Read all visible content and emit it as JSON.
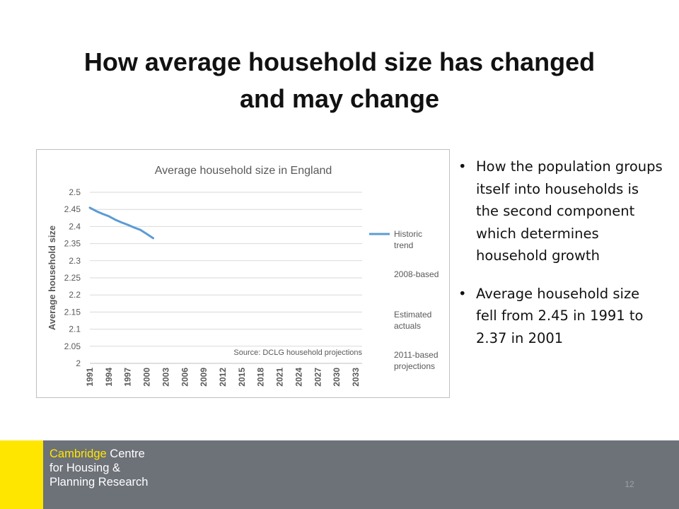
{
  "slide": {
    "title_line1": "How average household size has changed",
    "title_line2": "and may change",
    "page_number": "12"
  },
  "bullets": [
    {
      "text": "How the population groups itself into households is the second component which determines household growth"
    },
    {
      "text": "Average household size fell from 2.45 in 1991 to 2.37 in 2001"
    }
  ],
  "footer": {
    "logo_line1_strong": "Cambridge",
    "logo_line1_rest": " Centre",
    "logo_line2": "for Housing &",
    "logo_line3": "Planning Research",
    "accent_color": "#ffe600",
    "background_color": "#6d7178"
  },
  "chart_data": {
    "type": "line",
    "title": "Average household size in England",
    "ylabel": "Average household size",
    "xlabel": "",
    "source_note": "Source: DCLG household projections",
    "x_min": 1991,
    "x_max": 2034,
    "x_ticks": [
      "1991",
      "1994",
      "1997",
      "2000",
      "2003",
      "2006",
      "2009",
      "2012",
      "2015",
      "2018",
      "2021",
      "2024",
      "2027",
      "2030",
      "2033"
    ],
    "y_ticks": [
      "2",
      "2.05",
      "2.1",
      "2.15",
      "2.2",
      "2.25",
      "2.3",
      "2.35",
      "2.4",
      "2.45",
      "2.5"
    ],
    "ylim": [
      2,
      2.5
    ],
    "grid": true,
    "legend_position": "right",
    "series": [
      {
        "name": "Historic trend",
        "color": "#5b9bd5",
        "x": [
          1991,
          1992,
          1993,
          1994,
          1995,
          1996,
          1997,
          1998,
          1999,
          2000,
          2001
        ],
        "y": [
          2.455,
          2.445,
          2.437,
          2.43,
          2.42,
          2.412,
          2.405,
          2.397,
          2.39,
          2.378,
          2.366
        ]
      },
      {
        "name": "2008-based",
        "color": "",
        "x": [],
        "y": []
      },
      {
        "name": "Estimated actuals",
        "color": "",
        "x": [],
        "y": []
      },
      {
        "name": "2011-based projections",
        "color": "",
        "x": [],
        "y": []
      }
    ]
  }
}
